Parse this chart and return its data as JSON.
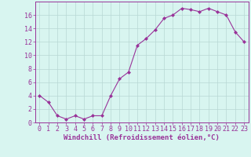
{
  "x": [
    0,
    1,
    2,
    3,
    4,
    5,
    6,
    7,
    8,
    9,
    10,
    11,
    12,
    13,
    14,
    15,
    16,
    17,
    18,
    19,
    20,
    21,
    22,
    23
  ],
  "y": [
    4.0,
    3.0,
    1.0,
    0.5,
    1.0,
    0.5,
    1.0,
    1.0,
    4.0,
    6.5,
    7.5,
    11.5,
    12.5,
    13.8,
    15.5,
    16.0,
    17.0,
    16.8,
    16.5,
    17.0,
    16.5,
    16.0,
    13.5,
    12.0
  ],
  "line_color": "#993399",
  "marker": "D",
  "marker_size": 2,
  "background_color": "#d8f5f0",
  "grid_color": "#b8d8d4",
  "axis_label_color": "#993399",
  "xlabel": "Windchill (Refroidissement éolien,°C)",
  "ylabel": "",
  "title": "",
  "xlim": [
    -0.5,
    23.5
  ],
  "ylim": [
    0,
    18
  ],
  "yticks": [
    0,
    2,
    4,
    6,
    8,
    10,
    12,
    14,
    16
  ],
  "xticks": [
    0,
    1,
    2,
    3,
    4,
    5,
    6,
    7,
    8,
    9,
    10,
    11,
    12,
    13,
    14,
    15,
    16,
    17,
    18,
    19,
    20,
    21,
    22,
    23
  ],
  "tick_label_color": "#993399",
  "tick_color": "#993399",
  "spine_color": "#993399",
  "font_size_xlabel": 6.5,
  "font_size_tick": 6.0,
  "linewidth": 0.8
}
